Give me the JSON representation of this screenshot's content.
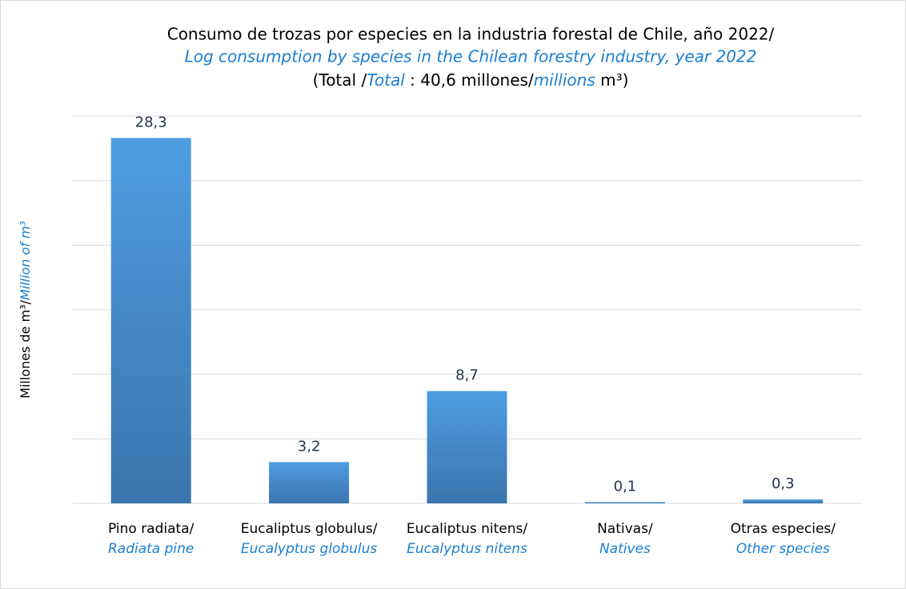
{
  "chart_data": {
    "type": "bar",
    "title": {
      "line1": "Consumo de trozas por especies en la industria forestal de Chile, año 2022/",
      "line2": "Log consumption by species in the Chilean forestry industry, year 2022",
      "line3": [
        "(Total /",
        "Total",
        " : 40,6 millones/",
        "millions",
        " m³)"
      ]
    },
    "y_label": [
      "Millones de m³/",
      "Million of m³"
    ],
    "categories": [
      "Pino radiata/",
      "Eucaliptus globulus/",
      "Eucaliptus nitens/",
      "Nativas/",
      "Otras especies/"
    ],
    "categories_en": [
      "Radiata pine",
      "Eucalyptus globulus",
      "Eucalyptus nitens",
      "Natives",
      "Other species"
    ],
    "values": [
      28.3,
      3.2,
      8.7,
      0.1,
      0.3
    ],
    "value_labels": [
      "28,3",
      "3,2",
      "8,7",
      "0,1",
      "0,3"
    ],
    "color": "#4a90d6",
    "ylim": [
      0,
      30
    ],
    "yticks": [
      0,
      5,
      10,
      15,
      20,
      25,
      30
    ],
    "grid": true
  }
}
